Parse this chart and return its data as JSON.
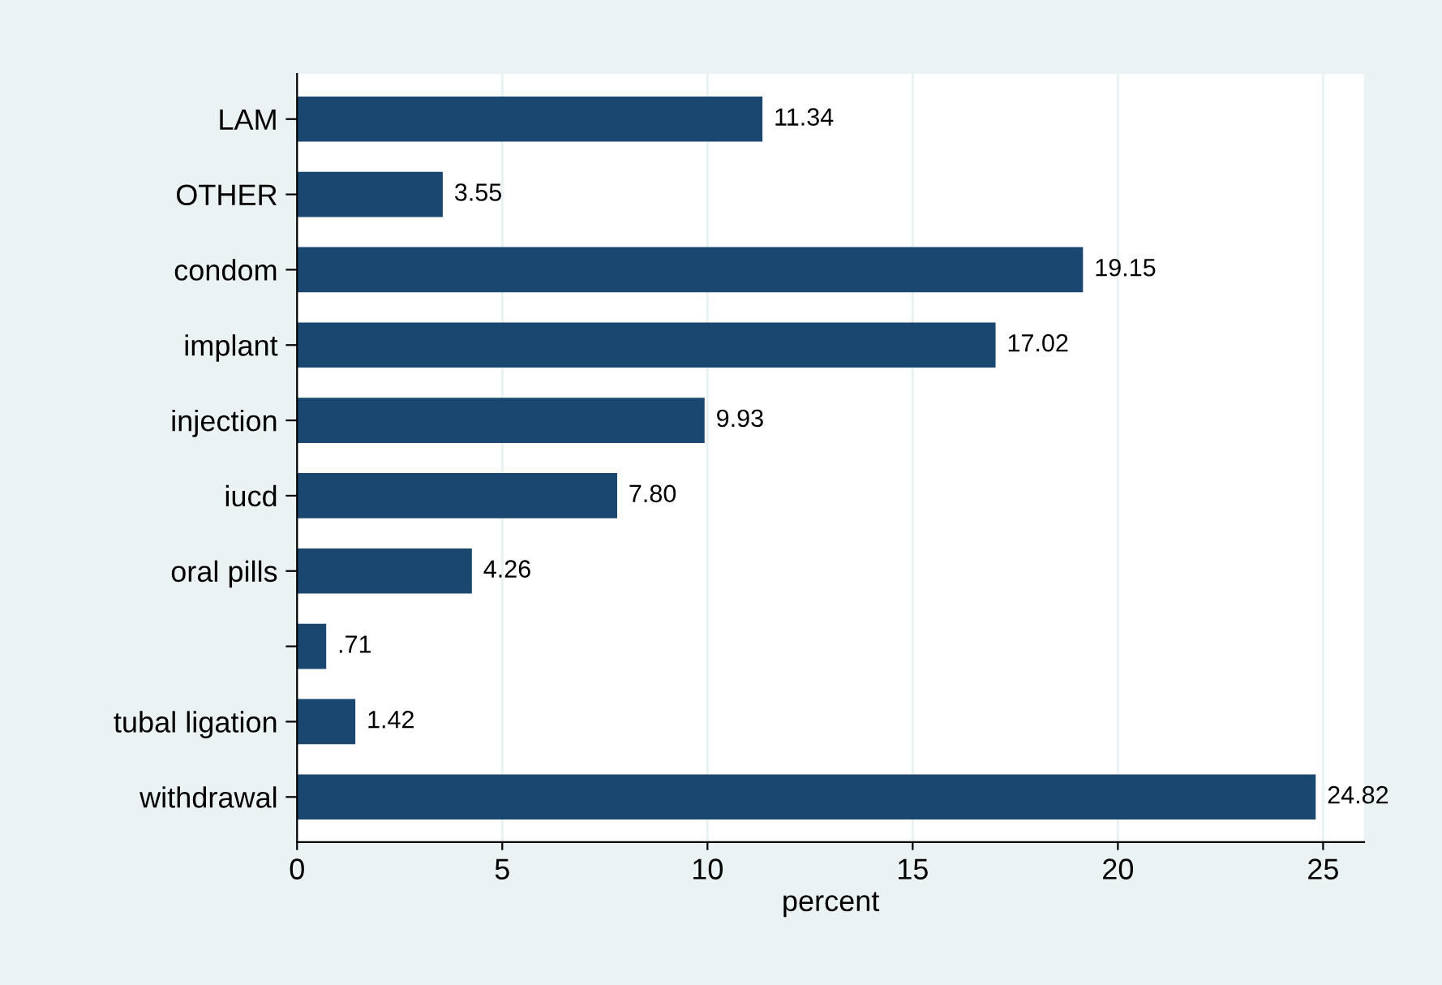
{
  "chart_data": {
    "type": "bar",
    "orientation": "horizontal",
    "xlabel": "percent",
    "categories": [
      "LAM",
      "OTHER",
      "condom",
      "implant",
      "injection",
      "iucd",
      "oral pills",
      null,
      "tubal ligation",
      "withdrawal"
    ],
    "values": [
      11.34,
      3.55,
      19.15,
      17.02,
      9.93,
      7.8,
      4.26,
      0.71,
      1.42,
      24.82
    ],
    "value_labels": [
      "11.34",
      "3.55",
      "19.15",
      "17.02",
      "9.93",
      "7.80",
      "4.26",
      ".71",
      "1.42",
      "24.82"
    ],
    "color": "#1a476f",
    "xlim": [
      0,
      26
    ],
    "xticks": [
      0,
      5,
      10,
      15,
      20,
      25
    ],
    "grid": "x",
    "legend": false
  }
}
